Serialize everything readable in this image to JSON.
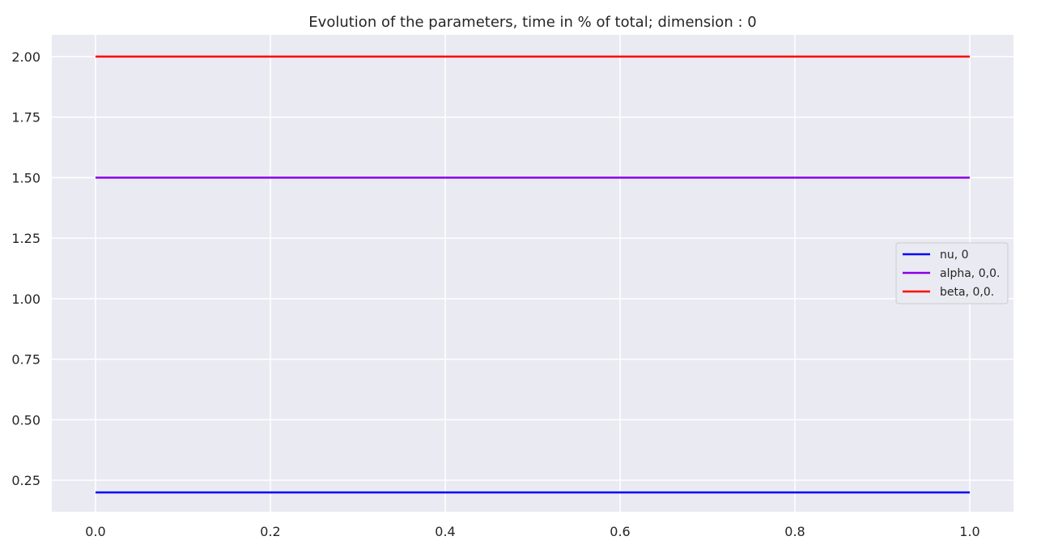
{
  "chart_data": {
    "type": "line",
    "title": "Evolution of the parameters, time in % of total; dimension : 0",
    "xlabel": "",
    "ylabel": "",
    "xlim": [
      -0.05,
      1.05
    ],
    "ylim": [
      0.12,
      2.09
    ],
    "xticks": [
      0.0,
      0.2,
      0.4,
      0.6,
      0.8,
      1.0
    ],
    "xtick_labels": [
      "0.0",
      "0.2",
      "0.4",
      "0.6",
      "0.8",
      "1.0"
    ],
    "yticks": [
      0.25,
      0.5,
      0.75,
      1.0,
      1.25,
      1.5,
      1.75,
      2.0
    ],
    "ytick_labels": [
      "0.25",
      "0.50",
      "0.75",
      "1.00",
      "1.25",
      "1.50",
      "1.75",
      "2.00"
    ],
    "grid": true,
    "legend_position": "center-right",
    "series": [
      {
        "name": "nu, 0",
        "color": "#0000ff",
        "x": [
          0.0,
          1.0
        ],
        "y": [
          0.2,
          0.2
        ]
      },
      {
        "name": "alpha, 0,0.",
        "color": "#8a00e6",
        "x": [
          0.0,
          1.0
        ],
        "y": [
          1.5,
          1.5
        ]
      },
      {
        "name": "beta, 0,0.",
        "color": "#ff0000",
        "x": [
          0.0,
          1.0
        ],
        "y": [
          2.0,
          2.0
        ]
      }
    ]
  },
  "colors": {
    "axes_background": "#eaeaf2",
    "grid": "#ffffff",
    "legend_background": "#eaeaf2",
    "legend_border": "#cccccc"
  }
}
